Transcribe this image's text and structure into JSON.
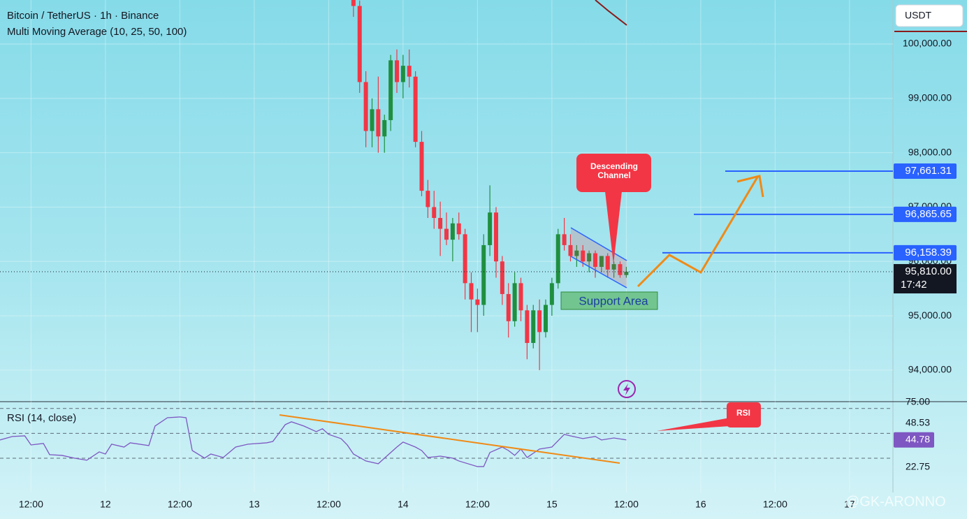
{
  "chart_data": [
    {
      "type": "candlestick",
      "title": "Bitcoin / TetherUS · 1h · Binance",
      "subtitle": "Multi Moving Average (10, 25, 50, 100)",
      "currency": "USDT",
      "x": [
        64,
        65,
        66,
        67,
        68,
        69,
        70,
        71,
        72,
        73,
        74,
        75,
        76,
        77,
        78,
        79,
        80,
        81,
        82,
        83,
        84,
        85,
        86,
        87,
        88,
        89,
        90,
        91,
        92,
        93,
        94,
        95,
        96,
        97,
        98,
        99,
        100,
        101,
        102,
        103,
        104,
        105,
        106,
        107,
        108
      ],
      "open": [
        100900,
        100700,
        99300,
        98400,
        98800,
        98300,
        98600,
        99700,
        99300,
        99600,
        99400,
        98200,
        97300,
        97000,
        96800,
        96600,
        96400,
        96700,
        96500,
        95600,
        95300,
        95200,
        96300,
        96900,
        96000,
        95400,
        94900,
        95600,
        95100,
        94500,
        95100,
        94700,
        95200,
        95600,
        96500,
        96300,
        96100,
        96200,
        96000,
        96150,
        95900,
        96100,
        95850,
        95950,
        95750
      ],
      "high": [
        101000,
        100800,
        99500,
        99000,
        99400,
        98700,
        99800,
        99900,
        99800,
        99900,
        99500,
        98400,
        97500,
        97300,
        97100,
        96900,
        96800,
        96900,
        96600,
        95800,
        95500,
        96500,
        97400,
        97000,
        96100,
        95600,
        95800,
        95700,
        95200,
        95200,
        95300,
        95300,
        95700,
        96600,
        96800,
        96500,
        96300,
        96300,
        96200,
        96200,
        96100,
        96150,
        96000,
        96000,
        95900
      ],
      "low": [
        100500,
        99100,
        98100,
        98100,
        98000,
        98000,
        98400,
        99100,
        99000,
        99200,
        98100,
        97200,
        96800,
        96600,
        96100,
        96300,
        96000,
        96400,
        95300,
        94700,
        94700,
        95000,
        96100,
        95700,
        95200,
        94600,
        94800,
        94900,
        94200,
        94400,
        94000,
        94600,
        95000,
        95500,
        96200,
        96000,
        95900,
        95900,
        95800,
        95700,
        95800,
        95700,
        95700,
        95700,
        95700
      ],
      "close": [
        100700,
        99300,
        98400,
        98800,
        98300,
        98600,
        99700,
        99300,
        99600,
        99400,
        98200,
        97300,
        97000,
        96800,
        96600,
        96400,
        96700,
        96500,
        95600,
        95300,
        95200,
        96300,
        96900,
        96000,
        95400,
        94900,
        95600,
        95100,
        94500,
        95100,
        94700,
        95200,
        95600,
        96500,
        96300,
        96100,
        96200,
        96000,
        96150,
        95900,
        96100,
        95850,
        95950,
        95750,
        95810
      ],
      "up_color": "#1f8f3f",
      "down_color": "#f23645",
      "xlim": [
        7,
        151
      ],
      "xticks": [
        {
          "value": 12,
          "label": "12:00"
        },
        {
          "value": 24,
          "label": "12"
        },
        {
          "value": 36,
          "label": "12:00"
        },
        {
          "value": 48,
          "label": "13"
        },
        {
          "value": 60,
          "label": "12:00"
        },
        {
          "value": 72,
          "label": "14"
        },
        {
          "value": 84,
          "label": "12:00"
        },
        {
          "value": 96,
          "label": "15"
        },
        {
          "value": 108,
          "label": "12:00"
        },
        {
          "value": 120,
          "label": "16"
        },
        {
          "value": 132,
          "label": "12:00"
        },
        {
          "value": 144,
          "label": "17"
        }
      ],
      "ylim": [
        93420,
        100810
      ],
      "yticks": [
        {
          "value": 94000,
          "label": "94,000.00"
        },
        {
          "value": 95000,
          "label": "95,000.00"
        },
        {
          "value": 96000,
          "label": "96,000.00"
        },
        {
          "value": 97000,
          "label": "97,000.00"
        },
        {
          "value": 98000,
          "label": "98,000.00"
        },
        {
          "value": 99000,
          "label": "99,000.00"
        },
        {
          "value": 100000,
          "label": "100,000.00"
        }
      ],
      "grid": true,
      "levels": [
        {
          "value": 97661.31,
          "label": "97,661.31"
        },
        {
          "value": 96865.65,
          "label": "96,865.65"
        },
        {
          "value": 96158.39,
          "label": "96,158.39"
        }
      ],
      "level_color": "#2962ff",
      "last_price": {
        "value": 95810,
        "label": "95,810.00"
      },
      "countdown": "17:42",
      "annotations": [
        "Descending Channel",
        "Support Area"
      ],
      "watermark": "@GK-ARONNO"
    },
    {
      "type": "line",
      "title": "RSI (14, close)",
      "x": [
        7,
        9,
        11,
        12,
        14,
        15,
        17,
        19,
        21,
        23,
        24,
        25,
        27,
        28,
        31,
        32,
        34,
        36,
        37,
        38,
        40,
        41,
        43,
        45,
        47,
        50,
        51,
        53,
        54,
        55,
        56,
        58,
        59,
        60,
        62,
        63,
        64,
        66,
        68,
        69,
        71,
        72,
        74,
        75,
        76,
        78,
        80,
        81,
        84,
        85,
        86,
        88,
        89,
        90,
        91,
        92,
        94,
        96,
        98,
        99,
        101,
        103,
        104,
        106,
        108
      ],
      "values": [
        44.7,
        47.5,
        48.0,
        40.7,
        41.9,
        32.9,
        32.3,
        30.1,
        28.4,
        35.1,
        33.4,
        41.3,
        39.0,
        42.4,
        40.2,
        55.9,
        62.6,
        63.2,
        62.6,
        36.2,
        30.1,
        33.4,
        30.6,
        39.0,
        41.3,
        42.4,
        43.5,
        57.0,
        59.3,
        57.6,
        55.9,
        51.4,
        53.7,
        49.2,
        45.8,
        40.7,
        33.4,
        27.8,
        25.6,
        30.1,
        39.0,
        43.0,
        39.0,
        36.2,
        30.6,
        31.7,
        30.1,
        27.8,
        23.3,
        23.3,
        34.6,
        39.0,
        36.2,
        32.3,
        37.4,
        30.6,
        37.4,
        39.0,
        49.2,
        48.0,
        45.8,
        47.5,
        44.7,
        46.3,
        44.78
      ],
      "color": "#7e57c2",
      "ylim": [
        2.5,
        75.5
      ],
      "yticks": [
        {
          "value": 75,
          "label": "75.00"
        },
        {
          "value": 22.75,
          "label": "22.75"
        }
      ],
      "bands": [
        70,
        50,
        30
      ],
      "ma_value": {
        "value": 48.53,
        "label": "48.53"
      },
      "last_value": {
        "value": 44.78,
        "label": "44.78"
      },
      "annotation": "RSI"
    }
  ]
}
